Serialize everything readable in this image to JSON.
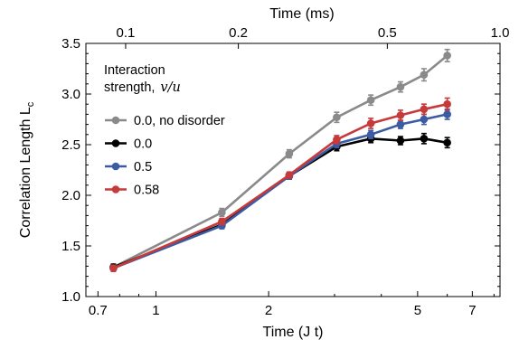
{
  "chart_data": {
    "type": "line",
    "xlabel": "Time (J t)",
    "x2label": "Time (ms)",
    "ylabel": "Correlation Length L",
    "ylabel_sub": "c",
    "x_scale": "log",
    "xlim": [
      0.65,
      8.3
    ],
    "ylim": [
      1.0,
      3.5
    ],
    "grid": false,
    "x_ticks": [
      {
        "value": 0.7,
        "label": "0.7"
      },
      {
        "value": 1,
        "label": "1"
      },
      {
        "value": 2,
        "label": "2"
      },
      {
        "value": 5,
        "label": "5"
      },
      {
        "value": 7,
        "label": "7"
      }
    ],
    "x_minor_ticks": [
      0.8,
      0.9,
      3,
      4,
      6,
      8
    ],
    "x2_ticks": [
      {
        "value": 0.83,
        "label": "0.1"
      },
      {
        "value": 1.66,
        "label": "0.2"
      },
      {
        "value": 4.15,
        "label": "0.5"
      },
      {
        "value": 8.3,
        "label": "1.0"
      }
    ],
    "y_ticks": [
      {
        "value": 1.0,
        "label": "1.0"
      },
      {
        "value": 1.5,
        "label": "1.5"
      },
      {
        "value": 2.0,
        "label": "2.0"
      },
      {
        "value": 2.5,
        "label": "2.5"
      },
      {
        "value": 3.0,
        "label": "3.0"
      },
      {
        "value": 3.5,
        "label": "3.5"
      }
    ],
    "legend": {
      "title_line1": "Interaction",
      "title_line2": "strength,",
      "title_math": "v/u",
      "placement": "top-left"
    },
    "x": [
      0.77,
      1.5,
      2.27,
      3.04,
      3.75,
      4.5,
      5.2,
      6.0
    ],
    "series": [
      {
        "name": "0.0, no disorder",
        "color": "#8a8a8a",
        "values": [
          1.29,
          1.83,
          2.41,
          2.77,
          2.94,
          3.07,
          3.19,
          3.38
        ],
        "errors": [
          0.03,
          0.04,
          0.04,
          0.05,
          0.05,
          0.05,
          0.06,
          0.06
        ]
      },
      {
        "name": "0.0",
        "color": "#000000",
        "values": [
          1.29,
          1.71,
          2.19,
          2.48,
          2.56,
          2.54,
          2.56,
          2.52
        ],
        "errors": [
          0.03,
          0.03,
          0.03,
          0.04,
          0.04,
          0.04,
          0.05,
          0.05
        ]
      },
      {
        "name": "0.5",
        "color": "#3b5ba3",
        "values": [
          1.28,
          1.7,
          2.19,
          2.51,
          2.6,
          2.7,
          2.75,
          2.8
        ],
        "errors": [
          0.03,
          0.03,
          0.03,
          0.04,
          0.04,
          0.04,
          0.05,
          0.05
        ]
      },
      {
        "name": "0.58",
        "color": "#c63a3a",
        "values": [
          1.28,
          1.74,
          2.2,
          2.55,
          2.71,
          2.79,
          2.85,
          2.9
        ],
        "errors": [
          0.03,
          0.03,
          0.03,
          0.04,
          0.05,
          0.05,
          0.05,
          0.06
        ]
      }
    ]
  }
}
